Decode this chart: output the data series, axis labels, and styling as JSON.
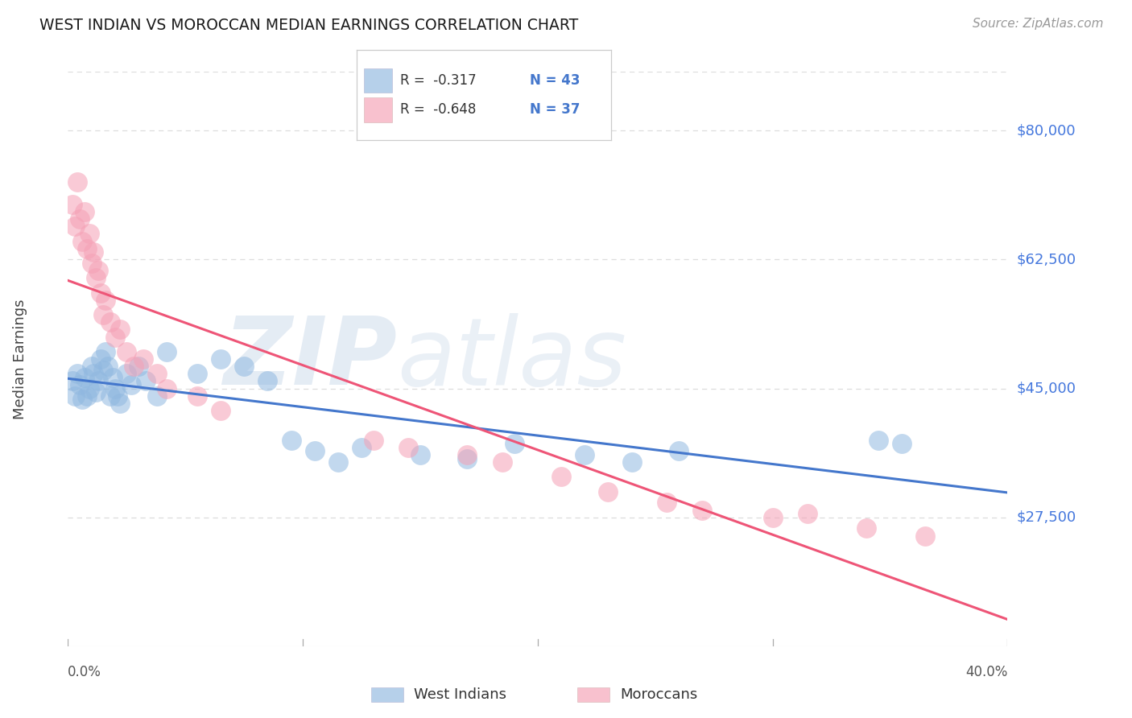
{
  "title": "WEST INDIAN VS MOROCCAN MEDIAN EARNINGS CORRELATION CHART",
  "source": "Source: ZipAtlas.com",
  "ylabel": "Median Earnings",
  "ytick_values": [
    27500,
    45000,
    62500,
    80000
  ],
  "ytick_labels": [
    "$27,500",
    "$45,000",
    "$62,500",
    "$80,000"
  ],
  "ylim": [
    10000,
    88000
  ],
  "xlim": [
    0.0,
    0.4
  ],
  "legend_blue_r": "R =  -0.317",
  "legend_blue_n": "N = 43",
  "legend_pink_r": "R =  -0.648",
  "legend_pink_n": "N = 37",
  "blue_scatter_color": "#90B8E0",
  "pink_scatter_color": "#F5A0B5",
  "blue_line_color": "#4477CC",
  "pink_line_color": "#EE5577",
  "yright_label_color": "#4477DD",
  "background_color": "#FFFFFF",
  "grid_color": "#DDDDDD",
  "watermark": "ZIPatlas",
  "west_indians_x": [
    0.002,
    0.003,
    0.004,
    0.005,
    0.006,
    0.007,
    0.008,
    0.009,
    0.01,
    0.011,
    0.012,
    0.013,
    0.014,
    0.015,
    0.016,
    0.017,
    0.018,
    0.019,
    0.02,
    0.021,
    0.022,
    0.025,
    0.027,
    0.03,
    0.033,
    0.038,
    0.042,
    0.055,
    0.065,
    0.075,
    0.085,
    0.095,
    0.105,
    0.115,
    0.125,
    0.15,
    0.17,
    0.19,
    0.22,
    0.24,
    0.26,
    0.345,
    0.355
  ],
  "west_indians_y": [
    46000,
    44000,
    47000,
    45500,
    43500,
    46500,
    44000,
    45000,
    48000,
    47000,
    44500,
    46000,
    49000,
    47500,
    50000,
    48000,
    44000,
    46500,
    45000,
    44000,
    43000,
    47000,
    45500,
    48000,
    46000,
    44000,
    50000,
    47000,
    49000,
    48000,
    46000,
    38000,
    36500,
    35000,
    37000,
    36000,
    35500,
    37500,
    36000,
    35000,
    36500,
    38000,
    37500
  ],
  "moroccans_x": [
    0.002,
    0.003,
    0.004,
    0.005,
    0.006,
    0.007,
    0.008,
    0.009,
    0.01,
    0.011,
    0.012,
    0.013,
    0.014,
    0.015,
    0.016,
    0.018,
    0.02,
    0.022,
    0.025,
    0.028,
    0.032,
    0.038,
    0.042,
    0.055,
    0.065,
    0.13,
    0.145,
    0.17,
    0.185,
    0.21,
    0.23,
    0.255,
    0.27,
    0.3,
    0.315,
    0.34,
    0.365
  ],
  "moroccans_y": [
    70000,
    67000,
    73000,
    68000,
    65000,
    69000,
    64000,
    66000,
    62000,
    63500,
    60000,
    61000,
    58000,
    55000,
    57000,
    54000,
    52000,
    53000,
    50000,
    48000,
    49000,
    47000,
    45000,
    44000,
    42000,
    38000,
    37000,
    36000,
    35000,
    33000,
    31000,
    29500,
    28500,
    27500,
    28000,
    26000,
    25000
  ]
}
